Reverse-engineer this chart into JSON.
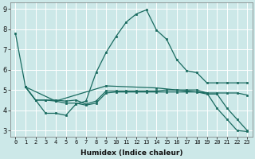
{
  "title": "",
  "xlabel": "Humidex (Indice chaleur)",
  "background_color": "#cce8e8",
  "grid_color": "#ffffff",
  "line_color": "#1a6b60",
  "xlim": [
    -0.5,
    23.5
  ],
  "ylim": [
    2.7,
    9.3
  ],
  "yticks": [
    3,
    4,
    5,
    6,
    7,
    8,
    9
  ],
  "xticks": [
    0,
    1,
    2,
    3,
    4,
    5,
    6,
    7,
    8,
    9,
    10,
    11,
    12,
    13,
    14,
    15,
    16,
    17,
    18,
    19,
    20,
    21,
    22,
    23
  ],
  "line1_x": [
    0,
    1,
    2,
    3,
    4,
    5,
    6,
    7,
    8,
    9,
    10,
    11,
    12,
    13,
    14,
    15,
    16,
    17,
    18,
    19,
    20,
    21,
    22,
    23
  ],
  "line1_y": [
    7.8,
    5.15,
    4.5,
    3.85,
    3.85,
    3.75,
    4.3,
    4.45,
    5.85,
    6.85,
    7.65,
    8.35,
    8.75,
    8.95,
    7.95,
    7.5,
    6.5,
    5.95,
    5.85,
    5.35,
    5.35,
    5.35,
    5.35,
    5.35
  ],
  "line2_x": [
    1,
    2,
    3,
    4,
    5,
    6,
    7,
    8,
    9,
    10,
    11,
    12,
    13,
    14,
    15,
    16,
    17,
    18,
    19,
    20,
    21,
    22,
    23
  ],
  "line2_y": [
    5.15,
    4.5,
    4.5,
    4.5,
    4.45,
    4.5,
    4.3,
    4.45,
    4.95,
    4.95,
    4.95,
    4.95,
    4.95,
    4.95,
    5.0,
    5.0,
    5.0,
    5.0,
    4.85,
    4.85,
    4.85,
    4.85,
    4.75
  ],
  "line3_x": [
    1,
    2,
    3,
    4,
    5,
    6,
    7,
    8,
    9,
    10,
    11,
    12,
    13,
    14,
    15,
    16,
    17,
    18,
    19,
    20,
    21,
    22,
    23
  ],
  "line3_y": [
    5.15,
    4.5,
    4.5,
    4.45,
    4.35,
    4.35,
    4.25,
    4.35,
    4.85,
    4.9,
    4.9,
    4.9,
    4.9,
    4.9,
    4.9,
    4.9,
    4.9,
    4.9,
    4.8,
    4.8,
    4.1,
    3.55,
    3.0
  ],
  "line4_x": [
    1,
    4,
    9,
    14,
    19,
    20,
    21,
    22,
    23
  ],
  "line4_y": [
    5.15,
    4.45,
    5.2,
    5.1,
    4.85,
    4.1,
    3.55,
    3.0,
    2.95
  ]
}
